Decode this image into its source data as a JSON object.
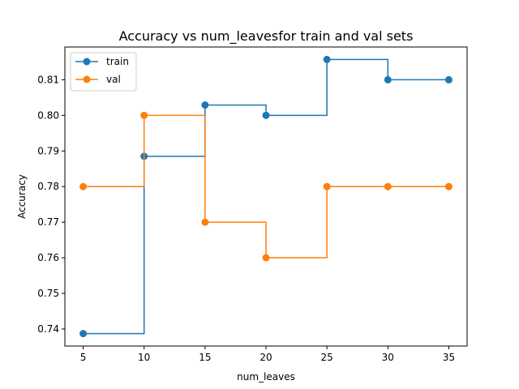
{
  "chart_data": {
    "type": "line",
    "title": "Accuracy vs num_leavesfor train and val sets",
    "xlabel": "num_leaves",
    "ylabel": "Accuracy",
    "x": [
      5,
      10,
      15,
      20,
      25,
      30,
      35
    ],
    "xlim": [
      3.5,
      36.5
    ],
    "ylim": [
      0.7352,
      0.8192
    ],
    "xticks": [
      5,
      10,
      15,
      20,
      25,
      30,
      35
    ],
    "yticks": [
      0.74,
      0.75,
      0.76,
      0.77,
      0.78,
      0.79,
      0.8,
      0.81
    ],
    "ytick_labels": [
      "0.74",
      "0.75",
      "0.76",
      "0.77",
      "0.78",
      "0.79",
      "0.80",
      "0.81"
    ],
    "step": "pre",
    "grid": false,
    "legend_position": "upper-left",
    "series": [
      {
        "name": "train",
        "color": "#1f77b4",
        "values": [
          0.7387,
          0.7885,
          0.8029,
          0.8,
          0.8157,
          0.81,
          0.81
        ]
      },
      {
        "name": "val",
        "color": "#ff7f0e",
        "values": [
          0.78,
          0.8,
          0.77,
          0.76,
          0.78,
          0.78,
          0.78
        ]
      }
    ]
  }
}
